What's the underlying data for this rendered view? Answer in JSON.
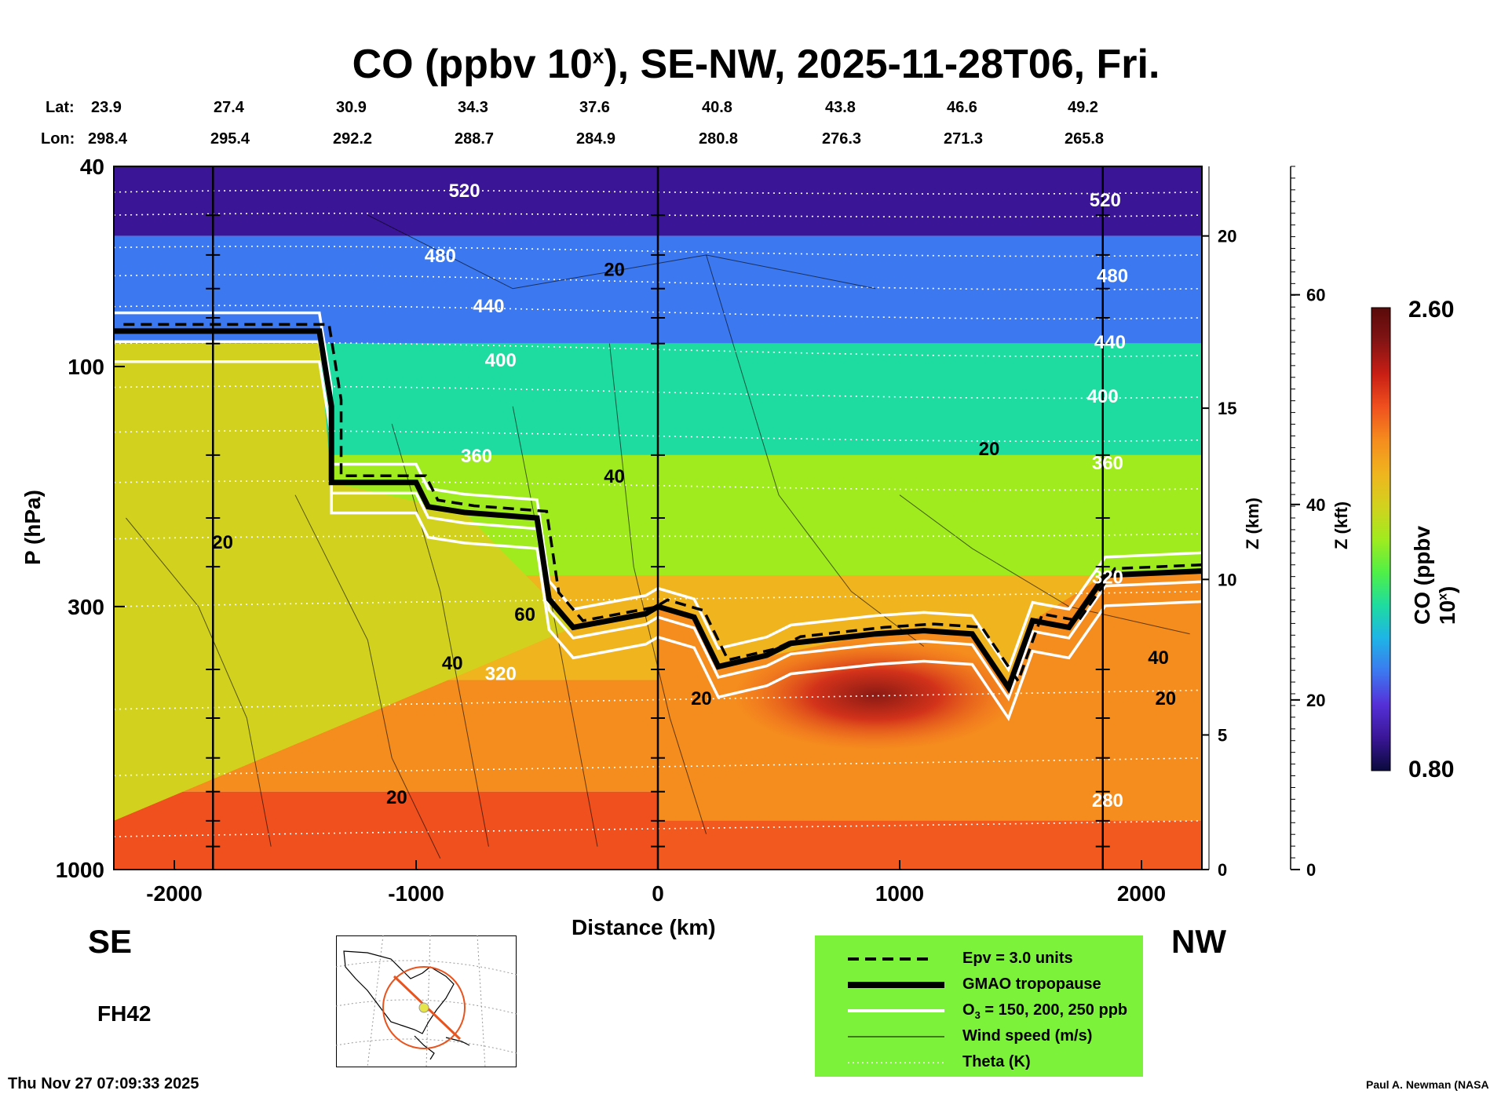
{
  "title": {
    "main": "CO (ppbv 10",
    "sup": "x",
    "rest": "), SE-NW, 2025-11-28T06, Fri."
  },
  "header": {
    "lat_label": "Lat:",
    "lon_label": "Lon:",
    "lat": [
      "23.9",
      "27.4",
      "30.9",
      "34.3",
      "37.6",
      "40.8",
      "43.8",
      "46.6",
      "49.2"
    ],
    "lon": [
      "298.4",
      "295.4",
      "292.2",
      "288.7",
      "284.9",
      "280.8",
      "276.3",
      "271.3",
      "265.8"
    ]
  },
  "labels": {
    "left_end": "SE",
    "right_end": "NW",
    "forecast_hour": "FH42",
    "timestamp": "Thu Nov 27 07:09:33 2025",
    "credit": "Paul A. Newman (NASA"
  },
  "legend": {
    "items": [
      {
        "style": "dashed",
        "label": "Epv = 3.0 units"
      },
      {
        "style": "thick",
        "label": "GMAO tropopause"
      },
      {
        "style": "white",
        "label": "O3 = 150, 200, 250 ppb"
      },
      {
        "style": "thin",
        "label": "Wind speed (m/s)"
      },
      {
        "style": "dotted",
        "label": "Theta (K)"
      }
    ],
    "background": "#7CF23A"
  },
  "colorbar": {
    "label": "CO (ppbv 10x)",
    "max_label": "2.60",
    "min_label": "0.80",
    "range": [
      0.8,
      2.6
    ],
    "colors": [
      "#0A0A3C",
      "#3A1696",
      "#5530D8",
      "#3C78F0",
      "#1EB4E6",
      "#1EDCA0",
      "#50F046",
      "#A0EB1E",
      "#D2D21E",
      "#F0B41E",
      "#F58C1E",
      "#F0501E",
      "#C81E14",
      "#821414",
      "#5A0A0A"
    ]
  },
  "chart_data": {
    "type": "heatmap",
    "title": "CO (ppbv 10x), SE-NW, 2025-11-28T06, Fri.",
    "xlabel": "Distance (km)",
    "ylabel": "P (hPa)",
    "y2label": "Z (km)",
    "y3label": "Z (kft)",
    "xlim": [
      -2250,
      2250
    ],
    "ylim": [
      1000,
      40
    ],
    "y_scale": "log",
    "x_ticks": [
      -2000,
      -1000,
      0,
      1000,
      2000
    ],
    "y_ticks": [
      1000,
      300,
      100,
      40
    ],
    "z_km_ticks": [
      0,
      5,
      10,
      15,
      20
    ],
    "z_kft_ticks": [
      0,
      20,
      40,
      60
    ],
    "vertical_reference_lines_km": [
      -1840,
      0,
      1840
    ],
    "co_field": [
      {
        "region": "stratosphere top",
        "co": 0.85
      },
      {
        "region": "upper stratosphere",
        "co": 1.1
      },
      {
        "region": "lower stratosphere",
        "co": 1.55
      },
      {
        "region": "upper troposphere subtropics",
        "co": 1.85
      },
      {
        "region": "mid troposphere",
        "co": 2.0
      },
      {
        "region": "lower troposphere",
        "co": 2.15
      },
      {
        "region": "boundary layer",
        "co": 2.3
      },
      {
        "region": "plume max near 900 km, 450 hPa",
        "co": 2.5
      }
    ],
    "tropopause_gmao": [
      {
        "x": -2250,
        "p": 85
      },
      {
        "x": -1400,
        "p": 85
      },
      {
        "x": -1350,
        "p": 120
      },
      {
        "x": -1350,
        "p": 170
      },
      {
        "x": -1000,
        "p": 170
      },
      {
        "x": -950,
        "p": 190
      },
      {
        "x": -800,
        "p": 195
      },
      {
        "x": -500,
        "p": 200
      },
      {
        "x": -450,
        "p": 290
      },
      {
        "x": -350,
        "p": 330
      },
      {
        "x": -50,
        "p": 310
      },
      {
        "x": 0,
        "p": 300
      },
      {
        "x": 150,
        "p": 315
      },
      {
        "x": 250,
        "p": 395
      },
      {
        "x": 450,
        "p": 375
      },
      {
        "x": 550,
        "p": 355
      },
      {
        "x": 900,
        "p": 340
      },
      {
        "x": 1100,
        "p": 335
      },
      {
        "x": 1300,
        "p": 340
      },
      {
        "x": 1450,
        "p": 435
      },
      {
        "x": 1550,
        "p": 320
      },
      {
        "x": 1700,
        "p": 330
      },
      {
        "x": 1850,
        "p": 260
      },
      {
        "x": 2250,
        "p": 255
      }
    ],
    "theta_labels_K": [
      280,
      320,
      360,
      400,
      440,
      480,
      520
    ],
    "wind_labels_ms": [
      20,
      40,
      60
    ],
    "colorbar_range": [
      0.8,
      2.6
    ]
  }
}
